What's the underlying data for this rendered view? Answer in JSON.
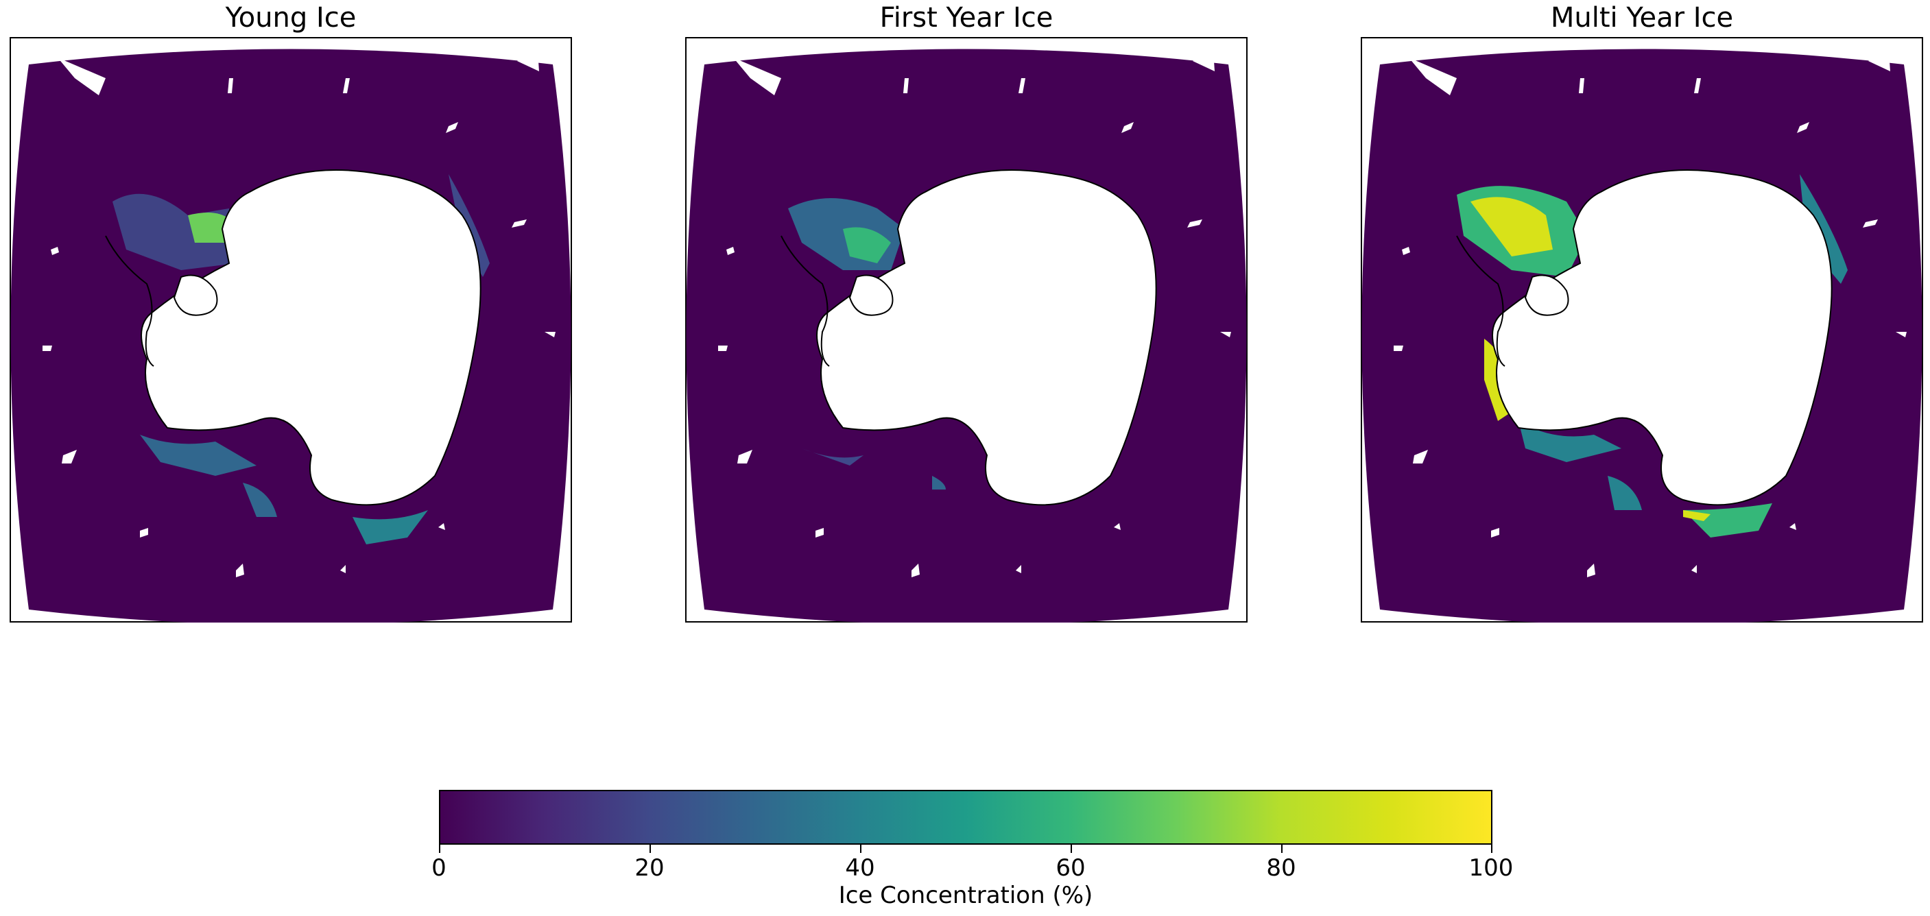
{
  "panels": [
    {
      "title": "Young Ice"
    },
    {
      "title": "First Year Ice"
    },
    {
      "title": "Multi Year Ice"
    }
  ],
  "colors": {
    "ocean": "#440154",
    "land": "#ffffff",
    "coast": "#000000",
    "frame": "#000000",
    "colormap": [
      "#440154",
      "#482777",
      "#3f4a8a",
      "#31678e",
      "#26838f",
      "#1f9d8a",
      "#35b779",
      "#6cce5a",
      "#b6de2b",
      "#d8e219",
      "#fde725"
    ]
  },
  "colorbar": {
    "label": "Ice Concentration (%)",
    "min": 0,
    "max": 100,
    "ticks": [
      "0",
      "20",
      "40",
      "60",
      "80",
      "100"
    ],
    "orientation": "horizontal",
    "colormap_name": "viridis"
  }
}
